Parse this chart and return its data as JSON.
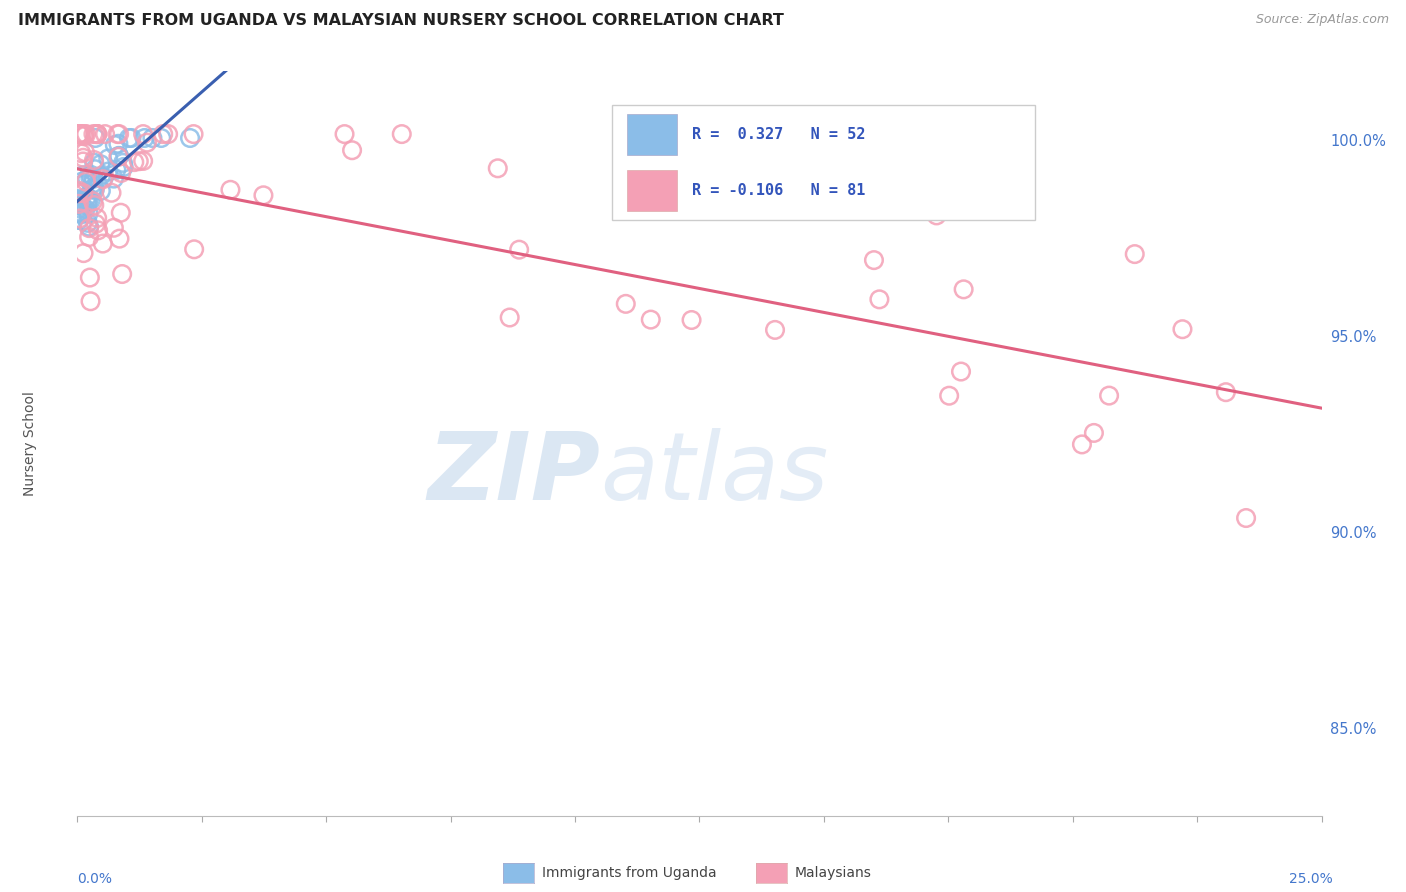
{
  "title": "IMMIGRANTS FROM UGANDA VS MALAYSIAN NURSERY SCHOOL CORRELATION CHART",
  "source": "Source: ZipAtlas.com",
  "ylabel": "Nursery School",
  "ytick_labels": [
    "85.0%",
    "90.0%",
    "95.0%",
    "100.0%"
  ],
  "ytick_values": [
    0.85,
    0.9,
    0.95,
    1.0
  ],
  "xmin": 0.0,
  "xmax": 0.25,
  "ymin": 0.828,
  "ymax": 1.018,
  "R_uganda": 0.327,
  "N_uganda": 52,
  "R_malaysians": -0.106,
  "N_malaysians": 81,
  "color_uganda": "#8bbde8",
  "color_malaysians": "#f4a0b5",
  "line_color_uganda": "#3a5fb0",
  "line_color_malaysians": "#e06080",
  "watermark_zip": "ZIP",
  "watermark_atlas": "atlas",
  "background_color": "#ffffff",
  "grid_color": "#d0d8e8",
  "title_color": "#222222",
  "right_tick_color": "#4477cc",
  "bottom_label_color": "#4477cc",
  "legend_text_color": "#3355bb"
}
